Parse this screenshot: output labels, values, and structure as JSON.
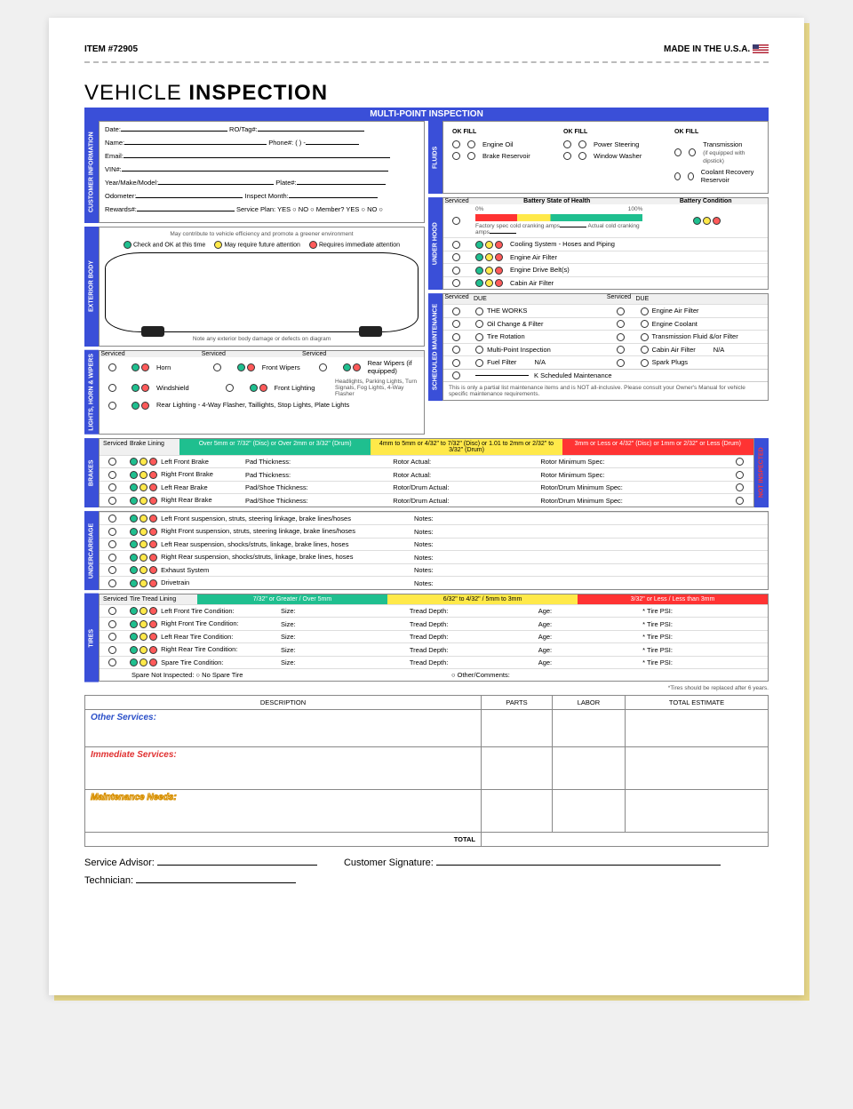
{
  "header": {
    "item_no": "ITEM #72905",
    "made_in": "MADE IN THE U.S.A."
  },
  "title": {
    "a": "VEHICLE",
    "b": "INSPECTION"
  },
  "banner": "MULTI-POINT INSPECTION",
  "tabs": {
    "customer": "CUSTOMER INFORMATION",
    "exterior": "EXTERIOR BODY",
    "lights": "LIGHTS, HORN & WIPERS",
    "fluids": "FLUIDS",
    "underhood": "UNDER HOOD",
    "scheduled": "SCHEDULED MAINTENANCE",
    "brakes": "BRAKES",
    "not_inspected": "NOT INSPECTED",
    "under": "UNDERCARRIAGE",
    "tires": "TIRES"
  },
  "customer": {
    "date": "Date:",
    "ro": "RO/Tag#:",
    "name": "Name:",
    "phone": "Phone#: (       )        -",
    "email": "Email:",
    "vin": "VIN#:",
    "ymm": "Year/Make/Model:",
    "plate": "Plate#:",
    "odo": "Odometer:",
    "insp": "Inspect Month:",
    "rewards": "Rewards#:",
    "svcplan": "Service Plan:  YES ○  NO ○   Member?  YES ○  NO ○"
  },
  "exterior": {
    "eff": "May contribute to vehicle efficiency and promote a greener environment",
    "legend": {
      "g": "Check and OK at this time",
      "y": "May require future attention",
      "r": "Requires immediate attention"
    },
    "note": "Note any exterior body damage or defects on diagram"
  },
  "lights": {
    "serviced": "Serviced",
    "items": [
      "Horn",
      "Windshield",
      "Rear Lighting - 4-Way Flasher, Taillights, Stop Lights, Plate Lights"
    ],
    "items2": [
      "Front Wipers",
      "Front Lighting"
    ],
    "items3": [
      "Rear Wipers (if equipped)",
      ""
    ],
    "front_lighting_sub": "Headlights, Parking Lights, Turn Signals, Fog Lights, 4-Way Flasher"
  },
  "fluids": {
    "hdr": "OK  FILL",
    "col1": [
      "Engine Oil",
      "Brake Reservoir"
    ],
    "col2": [
      "Power Steering",
      "Window Washer"
    ],
    "col3": [
      "Transmission",
      "Coolant Recovery Reservoir"
    ],
    "trans_sub": "(if equipped with dipstick)"
  },
  "underhood": {
    "serviced": "Serviced",
    "battery_health": "Battery State of Health",
    "battery_cond": "Battery Condition",
    "factory": "Factory spec cold cranking amps",
    "actual": "Actual cold cranking amps",
    "items": [
      "Cooling System - Hoses and Piping",
      "Engine Air Filter",
      "Engine Drive Belt(s)",
      "Cabin Air Filter"
    ]
  },
  "scheduled": {
    "serviced": "Serviced",
    "due": "DUE",
    "left": [
      "THE WORKS",
      "Oil Change & Filter",
      "Tire Rotation",
      "Multi-Point Inspection",
      "Fuel Filter"
    ],
    "left_na": "N/A",
    "right": [
      "Engine Air Filter",
      "Engine Coolant",
      "Transmission Fluid &/or Filter",
      "Cabin Air Filter",
      "Spark Plugs"
    ],
    "right_na": "N/A",
    "k_maint": "K Scheduled Maintenance",
    "note": "This is only a partial list maintenance items and is NOT all-inclusive. Please consult your Owner's Manual for vehicle specific maintenance requirements."
  },
  "brakes": {
    "serviced": "Serviced",
    "lining": "Brake Lining",
    "bars": [
      "Over 5mm or 7/32\" (Disc) or Over 2mm or 3/32\" (Drum)",
      "4mm to 5mm or 4/32\" to 7/32\" (Disc) or 1.01 to 2mm or 2/32\" to 3/32\" (Drum)",
      "3mm or Less or 4/32\" (Disc) or 1mm or 2/32\" or Less (Drum)"
    ],
    "rows": [
      "Left Front Brake",
      "Right Front Brake",
      "Left Rear Brake",
      "Right Rear Brake"
    ],
    "c2": [
      "Pad Thickness:",
      "Pad Thickness:",
      "Pad/Shoe Thickness:",
      "Pad/Shoe Thickness:"
    ],
    "c3": [
      "Rotor Actual:",
      "Rotor Actual:",
      "Rotor/Drum Actual:",
      "Rotor/Drum Actual:"
    ],
    "c4": [
      "Rotor Minimum Spec:",
      "Rotor Minimum Spec:",
      "Rotor/Drum Minimum Spec:",
      "Rotor/Drum Minimum Spec:"
    ]
  },
  "under": {
    "items": [
      "Left Front suspension, struts, steering linkage, brake lines/hoses",
      "Right Front suspension, struts, steering linkage, brake lines/hoses",
      "Left Rear suspension, shocks/struts, linkage, brake lines, hoses",
      "Right Rear suspension, shocks/struts, linkage, brake lines, hoses",
      "Exhaust System",
      "Drivetrain"
    ],
    "notes": "Notes:"
  },
  "tires": {
    "serviced": "Serviced",
    "lining": "Tire Tread Lining",
    "bars": [
      "7/32\" or Greater / Over 5mm",
      "6/32\" to 4/32\" / 5mm to 3mm",
      "3/32\" or Less / Less than 3mm"
    ],
    "rows": [
      "Left Front Tire Condition:",
      "Right Front Tire Condition:",
      "Left Rear Tire Condition:",
      "Right Rear Tire Condition:",
      "Spare Tire Condition:"
    ],
    "cols": {
      "size": "Size:",
      "depth": "Tread Depth:",
      "age": "Age:",
      "psi": "*  Tire PSI:"
    },
    "spare_not": "Spare Not Inspected: ○ No Spare Tire",
    "other": "○ Other/Comments:",
    "note": "*Tires should be replaced after 6 years."
  },
  "svc_table": {
    "hdr": [
      "DESCRIPTION",
      "PARTS",
      "LABOR",
      "TOTAL ESTIMATE"
    ],
    "other": "Other Services:",
    "immediate": "Immediate Services:",
    "maint": "Maintenance Needs:",
    "total": "TOTAL"
  },
  "signatures": {
    "advisor": "Service Advisor:",
    "customer": "Customer Signature:",
    "tech": "Technician:"
  }
}
